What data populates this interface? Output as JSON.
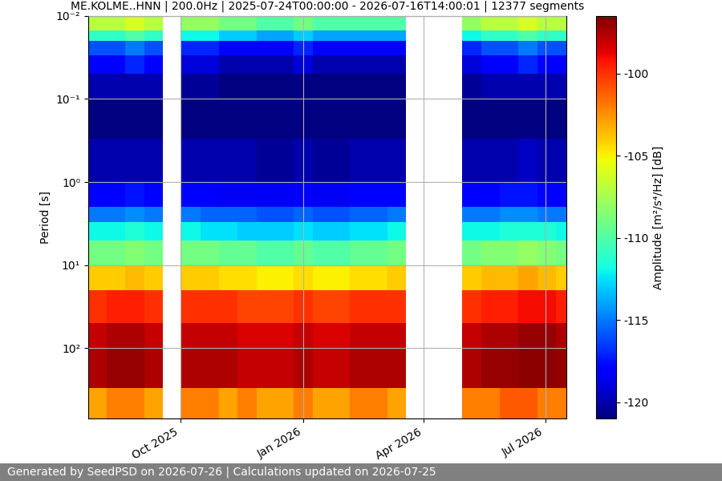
{
  "chart_data": {
    "type": "heatmap",
    "title": "ME.KOLME..HNN | 200.0Hz | 2025-07-24T00:00:00 - 2026-07-16T14:00:01 | 12377 segments",
    "ylabel": "Period [s]",
    "annotations": [
      "Generated by SeedPSD on 2026-07-26 | Calculations updated on 2026-07-25"
    ],
    "color": "jet",
    "log": "y",
    "grid": true,
    "x": [
      "2025-07-24T00:00:00",
      "2025-08-07T00:00:00",
      "2025-08-21T00:00:00",
      "2025-09-04T00:00:00",
      "2025-09-18T00:00:00",
      "2025-10-02T00:00:00",
      "2025-10-16T00:00:00",
      "2025-10-30T00:00:00",
      "2025-11-13T00:00:00",
      "2025-11-27T00:00:00",
      "2025-12-11T00:00:00",
      "2025-12-25T00:00:00",
      "2026-01-08T00:00:00",
      "2026-01-22T00:00:00",
      "2026-02-05T00:00:00",
      "2026-02-19T00:00:00",
      "2026-03-05T00:00:00",
      "2026-03-19T00:00:00",
      "2026-04-02T00:00:00",
      "2026-04-16T00:00:00",
      "2026-04-30T00:00:00",
      "2026-05-14T00:00:00",
      "2026-05-28T00:00:00",
      "2026-06-11T00:00:00",
      "2026-06-25T00:00:00",
      "2026-07-09T00:00:00",
      "2026-07-16T14:00:01"
    ],
    "y": [
      0.01,
      0.015,
      0.02,
      0.03,
      0.05,
      0.1,
      0.3,
      1,
      2,
      3,
      5,
      10,
      20,
      50,
      100,
      300,
      700
    ],
    "z": [
      [
        -107,
        -107,
        -106,
        -107,
        null,
        -108,
        -108,
        -109,
        -109,
        -110,
        -110,
        -109,
        -110,
        -110,
        -110,
        -110,
        -110,
        null,
        null,
        null,
        -108,
        -107,
        -107,
        -106,
        -107,
        -107
      ],
      [
        -111,
        -111,
        -110,
        -111,
        null,
        -112,
        -112,
        -113,
        -113,
        -114,
        -114,
        -113,
        -114,
        -114,
        -114,
        -114,
        -114,
        null,
        null,
        null,
        -112,
        -111,
        -111,
        -110,
        -111,
        -111
      ],
      [
        -116,
        -116,
        -115,
        -116,
        null,
        -117,
        -117,
        -118,
        -118,
        -118,
        -118,
        -117,
        -118,
        -118,
        -118,
        -118,
        -118,
        null,
        null,
        null,
        -117,
        -116,
        -116,
        -115,
        -116,
        -116
      ],
      [
        -118,
        -118,
        -117,
        -118,
        null,
        -119,
        -119,
        -120,
        -120,
        -120,
        -120,
        -119,
        -120,
        -120,
        -120,
        -120,
        -120,
        null,
        null,
        null,
        -119,
        -118,
        -118,
        -117,
        -118,
        -118
      ],
      [
        -120,
        -120,
        -120,
        -120,
        null,
        -120.5,
        -120.5,
        -121,
        -121,
        -121,
        -121,
        -121,
        -121,
        -121,
        -121,
        -121,
        -121,
        null,
        null,
        null,
        -120.5,
        -120,
        -120,
        -120,
        -120,
        -120
      ],
      [
        -121,
        -121,
        -121,
        -121,
        null,
        -121,
        -121,
        -121,
        -121,
        -121,
        -121,
        -121,
        -121,
        -121,
        -121,
        -121,
        -121,
        null,
        null,
        null,
        -121,
        -121,
        -121,
        -121,
        -121,
        -121
      ],
      [
        -120,
        -120,
        -120,
        -120,
        null,
        -120,
        -120,
        -120,
        -120,
        -120.5,
        -120.5,
        -120,
        -120.5,
        -120.5,
        -120,
        -120,
        -120,
        null,
        null,
        null,
        -120,
        -120,
        -120,
        -119.5,
        -120,
        -120
      ],
      [
        -118,
        -118,
        -117.5,
        -118,
        null,
        -118,
        -118,
        -118.5,
        -118.5,
        -118.5,
        -118.5,
        -118,
        -118.5,
        -118.5,
        -118,
        -118,
        -118,
        null,
        null,
        null,
        -118,
        -118,
        -117.5,
        -117.5,
        -118,
        -118
      ],
      [
        -115,
        -115,
        -114.5,
        -115,
        null,
        -115,
        -115.5,
        -115.5,
        -115.5,
        -116,
        -116,
        -115.5,
        -116,
        -116,
        -115.5,
        -115.5,
        -115,
        null,
        null,
        null,
        -115,
        -115,
        -114.5,
        -114.5,
        -115,
        -115
      ],
      [
        -112,
        -112,
        -111.5,
        -112,
        null,
        -112,
        -112.5,
        -112.5,
        -113,
        -113,
        -113,
        -112.5,
        -113,
        -113,
        -112.5,
        -112.5,
        -112,
        null,
        null,
        null,
        -112,
        -112,
        -111.5,
        -111.5,
        -111.5,
        -112
      ],
      [
        -109,
        -109,
        -108.5,
        -109,
        null,
        -109,
        -109,
        -109.5,
        -109.5,
        -110,
        -110,
        -109.5,
        -110,
        -110,
        -109.5,
        -109.5,
        -109,
        null,
        null,
        null,
        -109,
        -108.5,
        -108.5,
        -108,
        -108.5,
        -109
      ],
      [
        -104,
        -104,
        -103.5,
        -104,
        null,
        -104,
        -104,
        -104.5,
        -104.5,
        -105,
        -105,
        -104.5,
        -105,
        -105,
        -104.5,
        -104.5,
        -104,
        null,
        null,
        null,
        -104,
        -103.5,
        -103.5,
        -103,
        -103.5,
        -104
      ],
      [
        -100,
        -99.5,
        -99.5,
        -100,
        null,
        -100,
        -100,
        -100,
        -100.5,
        -100.5,
        -100.5,
        -100,
        -100.5,
        -100.5,
        -100,
        -100,
        -100,
        null,
        null,
        null,
        -100,
        -99.5,
        -99.5,
        -99,
        -99,
        -99.5
      ],
      [
        -98,
        -97.5,
        -97.5,
        -98,
        null,
        -98,
        -98,
        -98,
        -98.5,
        -98.5,
        -98.5,
        -98,
        -98.5,
        -98.5,
        -98,
        -98,
        -98,
        null,
        null,
        null,
        -98,
        -97.5,
        -97.5,
        -97,
        -97,
        -97.5
      ],
      [
        -97.5,
        -97,
        -97,
        -97.5,
        null,
        -97.5,
        -97.5,
        -97.5,
        -98,
        -98,
        -98,
        -97.5,
        -98,
        -98,
        -97.5,
        -97.5,
        -97.5,
        null,
        null,
        null,
        -97.5,
        -97,
        -97,
        -96.8,
        -96.8,
        -97
      ],
      [
        -103,
        -102,
        -102,
        -103,
        null,
        -102,
        -102,
        -103,
        -102,
        -103,
        -103,
        -102,
        -103,
        -103,
        -102,
        -102,
        -103,
        null,
        null,
        null,
        -102,
        -102,
        -101,
        -101,
        -102,
        -102
      ]
    ],
    "xlim": [
      "2025-07-24T00:00:00",
      "2026-07-16T14:00:01"
    ],
    "xticks": [
      {
        "value": "2025-10-01T00:00:00",
        "label": "Oct 2025"
      },
      {
        "value": "2026-01-01T00:00:00",
        "label": "Jan 2026"
      },
      {
        "value": "2026-04-01T00:00:00",
        "label": "Apr 2026"
      },
      {
        "value": "2026-07-01T00:00:00",
        "label": "Jul 2026"
      }
    ],
    "ylim": [
      700,
      0.01
    ],
    "yticks": [
      {
        "value": 0.01,
        "label": "10⁻²"
      },
      {
        "value": 0.1,
        "label": "10⁻¹"
      },
      {
        "value": 1,
        "label": "10⁰"
      },
      {
        "value": 10,
        "label": "10¹"
      },
      {
        "value": 100,
        "label": "10²"
      }
    ],
    "colorbar": {
      "label": "Amplitude [m²/s⁴/Hz] [dB]",
      "range": [
        -121,
        -96.5
      ],
      "ticks": [
        -120,
        -115,
        -110,
        -105,
        -100
      ]
    }
  }
}
